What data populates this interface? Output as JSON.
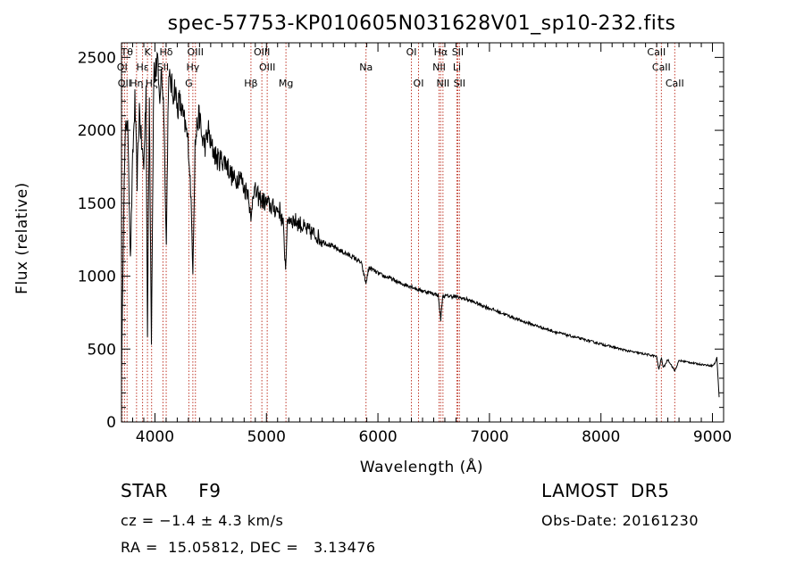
{
  "chart_data": {
    "type": "line",
    "title": "spec-57753-KP010605N031628V01_sp10-232.fits",
    "xlabel": "Wavelength (Å)",
    "ylabel": "Flux (relative)",
    "xlim": [
      3700,
      9100
    ],
    "ylim": [
      0,
      2600
    ],
    "xticks": [
      4000,
      5000,
      6000,
      7000,
      8000,
      9000
    ],
    "yticks": [
      0,
      500,
      1000,
      1500,
      2000,
      2500
    ],
    "grid": false,
    "series": [
      {
        "x": [
          3700,
          3720,
          3740,
          3760,
          3780,
          3800,
          3820,
          3840,
          3860,
          3880,
          3900,
          3920,
          3933,
          3950,
          3968,
          3990,
          4000,
          4020,
          4040,
          4060,
          4080,
          4102,
          4120,
          4140,
          4160,
          4180,
          4200,
          4220,
          4250,
          4280,
          4300,
          4320,
          4340,
          4360,
          4380,
          4400,
          4420,
          4450,
          4480,
          4500,
          4530,
          4560,
          4600,
          4640,
          4680,
          4720,
          4760,
          4800,
          4840,
          4861,
          4880,
          4920,
          4960,
          5000,
          5040,
          5080,
          5120,
          5150,
          5172,
          5183,
          5200,
          5250,
          5300,
          5350,
          5400,
          5450,
          5500,
          5550,
          5600,
          5650,
          5700,
          5750,
          5800,
          5850,
          5892,
          5920,
          5960,
          6000,
          6050,
          6100,
          6150,
          6200,
          6250,
          6300,
          6350,
          6400,
          6450,
          6500,
          6540,
          6563,
          6580,
          6620,
          6680,
          6720,
          6800,
          6900,
          7000,
          7100,
          7200,
          7300,
          7400,
          7500,
          7600,
          7700,
          7800,
          7900,
          8000,
          8100,
          8200,
          8300,
          8400,
          8498,
          8520,
          8542,
          8560,
          8600,
          8662,
          8700,
          8750,
          8800,
          8850,
          8900,
          8950,
          9000,
          9020,
          9040,
          9060
        ],
        "y": [
          300,
          1500,
          2100,
          1950,
          1100,
          1800,
          2200,
          1650,
          2150,
          1900,
          1750,
          2300,
          600,
          2200,
          550,
          2450,
          2350,
          2500,
          2200,
          2400,
          2150,
          1200,
          2300,
          2350,
          2250,
          2300,
          2150,
          2200,
          2100,
          2000,
          1900,
          1600,
          1050,
          1900,
          2050,
          2100,
          1950,
          1900,
          2000,
          1900,
          1850,
          1800,
          1800,
          1780,
          1700,
          1650,
          1700,
          1600,
          1580,
          1350,
          1600,
          1550,
          1520,
          1500,
          1480,
          1460,
          1450,
          1350,
          1050,
          1300,
          1400,
          1380,
          1360,
          1320,
          1300,
          1280,
          1240,
          1220,
          1200,
          1180,
          1160,
          1140,
          1120,
          1090,
          950,
          1060,
          1040,
          1020,
          1000,
          990,
          970,
          950,
          940,
          930,
          910,
          900,
          890,
          880,
          870,
          700,
          860,
          865,
          860,
          855,
          840,
          810,
          780,
          750,
          720,
          690,
          665,
          640,
          615,
          595,
          575,
          555,
          535,
          515,
          495,
          478,
          465,
          450,
          360,
          440,
          370,
          430,
          350,
          420,
          415,
          408,
          400,
          395,
          390,
          385,
          400,
          440,
          170
        ]
      }
    ],
    "lines": [
      {
        "label": "OI",
        "x": 3706,
        "row": 1
      },
      {
        "label": "OII",
        "x": 3727,
        "row": 2
      },
      {
        "label": "Hη",
        "x": 3835,
        "row": 2
      },
      {
        "label": "Hε",
        "x": 3889,
        "row": 1
      },
      {
        "label": "Hζ",
        "x": 3970,
        "row": 2
      },
      {
        "label": "Tθ",
        "x": 3750,
        "row": 0
      },
      {
        "label": "K",
        "x": 3933,
        "row": 0
      },
      {
        "label": "Hδ",
        "x": 4101,
        "row": 0
      },
      {
        "label": "SII",
        "x": 4072,
        "row": 1
      },
      {
        "label": "OIII",
        "x": 4363,
        "row": 0
      },
      {
        "label": "Hγ",
        "x": 4340,
        "row": 1
      },
      {
        "label": "G",
        "x": 4304,
        "row": 2
      },
      {
        "label": "Hβ",
        "x": 4861,
        "row": 2
      },
      {
        "label": "OIII",
        "x": 4959,
        "row": 0
      },
      {
        "label": "OIII",
        "x": 5007,
        "row": 1
      },
      {
        "label": "Mg",
        "x": 5175,
        "row": 2
      },
      {
        "label": "Na",
        "x": 5893,
        "row": 1
      },
      {
        "label": "OI",
        "x": 6300,
        "row": 0
      },
      {
        "label": "OI",
        "x": 6364,
        "row": 2
      },
      {
        "label": "Hα",
        "x": 6563,
        "row": 0
      },
      {
        "label": "NII",
        "x": 6548,
        "row": 1
      },
      {
        "label": "NII",
        "x": 6583,
        "row": 2
      },
      {
        "label": "SII",
        "x": 6716,
        "row": 0
      },
      {
        "label": "Li",
        "x": 6708,
        "row": 1
      },
      {
        "label": "SII",
        "x": 6731,
        "row": 2
      },
      {
        "label": "CaII",
        "x": 8498,
        "row": 0
      },
      {
        "label": "CaII",
        "x": 8542,
        "row": 1
      },
      {
        "label": "CaII",
        "x": 8662,
        "row": 2
      }
    ]
  },
  "info": {
    "object_type": "STAR     F9",
    "survey": "LAMOST  DR5",
    "cz": "cz = −1.4 ± 4.3 km/s",
    "obs_date": "Obs-Date: 20161230",
    "radec": "RA =  15.05812, DEC =   3.13476"
  }
}
